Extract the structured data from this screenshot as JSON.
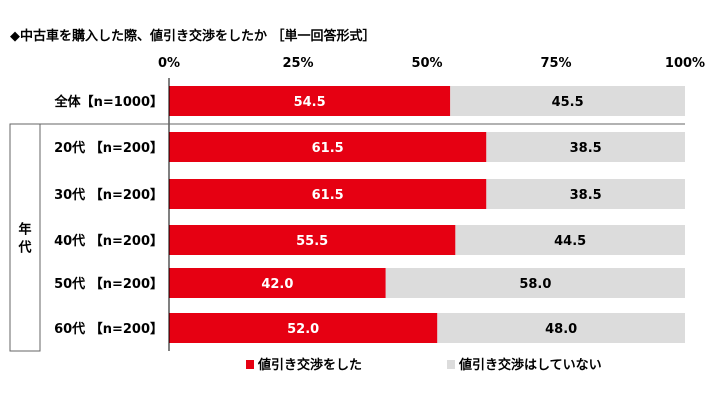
{
  "chart_data": {
    "type": "bar",
    "orientation": "horizontal",
    "stacked": true,
    "title": "◆中古車を購入した際、値引き交渉をしたか ［単一回答形式］",
    "x_ticks": [
      "0%",
      "25%",
      "50%",
      "75%",
      "100%"
    ],
    "xlim": [
      0,
      100
    ],
    "group_label": "年代",
    "categories": [
      "全体【n=1000】",
      "20代 【n=200】",
      "30代 【n=200】",
      "40代 【n=200】",
      "50代 【n=200】",
      "60代 【n=200】"
    ],
    "series": [
      {
        "name": "値引き交渉をした",
        "color": "#e60012",
        "values": [
          54.5,
          61.5,
          61.5,
          55.5,
          42.0,
          52.0
        ]
      },
      {
        "name": "値引き交渉はしていない",
        "color": "#dcdcdc",
        "values": [
          45.5,
          38.5,
          38.5,
          44.5,
          58.0,
          48.0
        ]
      }
    ],
    "grid": false,
    "legend_position": "bottom"
  }
}
